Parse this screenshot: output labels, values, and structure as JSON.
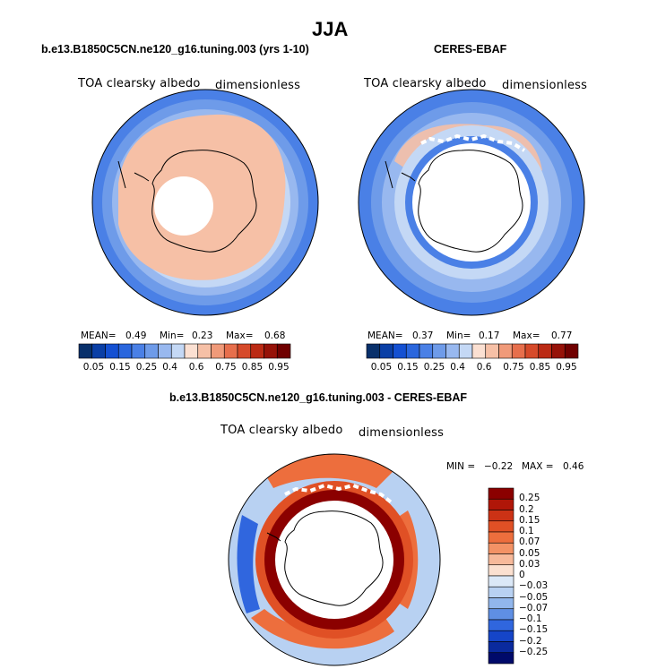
{
  "title": "JJA",
  "chart_data": [
    {
      "type": "heatmap",
      "projection": "south-polar-stereographic",
      "title": "b.e13.B1850C5CN.ne120_g16.tuning.003 (yrs 1-10)",
      "variable_label": "TOA clearsky albedo",
      "units_label": "dimensionless",
      "stats": {
        "mean_label": "MEAN=",
        "mean": "0.49",
        "min_label": "Min=",
        "min": "0.23",
        "max_label": "Max=",
        "max": "0.68"
      },
      "colorbar_ticks": [
        "0.05",
        "0.15",
        "0.25",
        "0.4",
        "0.6",
        "0.75",
        "0.85",
        "0.95"
      ],
      "colorbar_levels": [
        0.05,
        0.1,
        0.15,
        0.2,
        0.25,
        0.3,
        0.4,
        0.5,
        0.6,
        0.7,
        0.75,
        0.8,
        0.85,
        0.9,
        0.95
      ]
    },
    {
      "type": "heatmap",
      "projection": "south-polar-stereographic",
      "title": "CERES-EBAF",
      "variable_label": "TOA clearsky albedo",
      "units_label": "dimensionless",
      "stats": {
        "mean_label": "MEAN=",
        "mean": "0.37",
        "min_label": "Min=",
        "min": "0.17",
        "max_label": "Max=",
        "max": "0.77"
      },
      "colorbar_ticks": [
        "0.05",
        "0.15",
        "0.25",
        "0.4",
        "0.6",
        "0.75",
        "0.85",
        "0.95"
      ],
      "colorbar_levels": [
        0.05,
        0.1,
        0.15,
        0.2,
        0.25,
        0.3,
        0.4,
        0.5,
        0.6,
        0.7,
        0.75,
        0.8,
        0.85,
        0.9,
        0.95
      ]
    },
    {
      "type": "heatmap",
      "projection": "south-polar-stereographic",
      "title": "b.e13.B1850C5CN.ne120_g16.tuning.003 - CERES-EBAF",
      "variable_label": "TOA clearsky albedo",
      "units_label": "dimensionless",
      "stats": {
        "min_label": "MIN =",
        "min": "−0.22",
        "max_label": "MAX =",
        "max": "0.46"
      },
      "colorbar_ticks": [
        "0.25",
        "0.2",
        "0.15",
        "0.1",
        "0.07",
        "0.05",
        "0.03",
        "0",
        "−0.03",
        "−0.05",
        "−0.07",
        "−0.1",
        "−0.15",
        "−0.2",
        "−0.25"
      ],
      "colorbar_levels": [
        0.25,
        0.2,
        0.15,
        0.1,
        0.07,
        0.05,
        0.03,
        0,
        -0.03,
        -0.05,
        -0.07,
        -0.1,
        -0.15,
        -0.2,
        -0.25
      ]
    }
  ],
  "colors": {
    "abs_palette": [
      "#08306b",
      "#0a3fa6",
      "#1450d2",
      "#2a66dd",
      "#4a80e6",
      "#6e9be9",
      "#98b8ef",
      "#c4d8f5",
      "#fbe0d2",
      "#f6c0a6",
      "#f09a79",
      "#e76f4c",
      "#d64a2a",
      "#bb2a14",
      "#961208",
      "#700000"
    ],
    "diff_palette": [
      "#8b0000",
      "#b01608",
      "#cc3215",
      "#e05025",
      "#ed6e3d",
      "#f39265",
      "#f7b99a",
      "#fbe0d0",
      "#dbe8f7",
      "#b8d1f2",
      "#91b6ec",
      "#5f8fe4",
      "#3066de",
      "#1545c8",
      "#0a2a9e",
      "#000a6a"
    ]
  }
}
